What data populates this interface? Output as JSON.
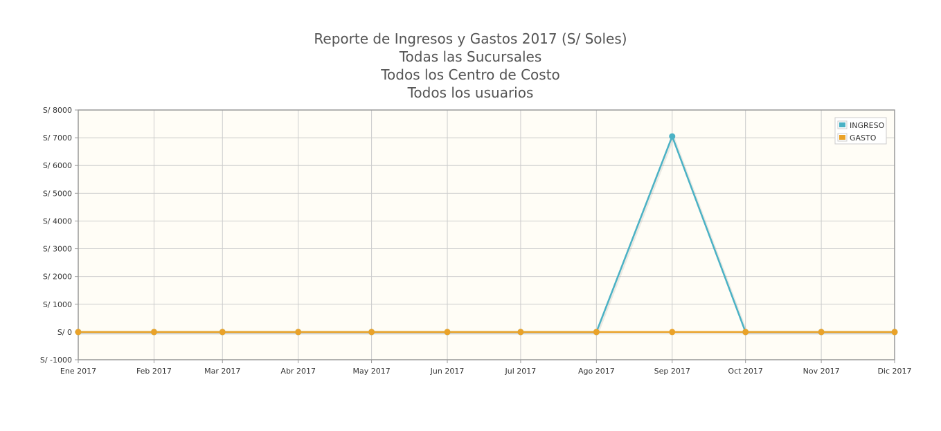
{
  "chart_data": {
    "type": "line",
    "title_lines": [
      "Reporte de Ingresos y Gastos 2017 (S/ Soles)",
      "Todas las Sucursales",
      "Todos los Centro de Costo",
      "Todos los usuarios"
    ],
    "categories": [
      "Ene 2017",
      "Feb 2017",
      "Mar 2017",
      "Abr 2017",
      "May 2017",
      "Jun 2017",
      "Jul 2017",
      "Ago 2017",
      "Sep 2017",
      "Oct 2017",
      "Nov 2017",
      "Dic 2017"
    ],
    "x_dates": [
      "2017-01-01",
      "2017-02-01",
      "2017-03-01",
      "2017-04-01",
      "2017-05-01",
      "2017-06-01",
      "2017-07-01",
      "2017-08-01",
      "2017-09-01",
      "2017-10-01",
      "2017-11-01",
      "2017-12-01"
    ],
    "y_ticks": [
      -1000,
      0,
      1000,
      2000,
      3000,
      4000,
      5000,
      6000,
      7000,
      8000
    ],
    "y_tick_prefix": "S/ ",
    "ylim": [
      -1000,
      8000
    ],
    "grid": true,
    "legend_position": "top-right",
    "series": [
      {
        "name": "INGRESO",
        "color": "#4bb2c5",
        "values": [
          0,
          0,
          0,
          0,
          0,
          0,
          0,
          0,
          7050,
          0,
          0,
          0
        ]
      },
      {
        "name": "GASTO",
        "color": "#eaa228",
        "values": [
          0,
          0,
          0,
          0,
          0,
          0,
          0,
          0,
          0,
          0,
          0,
          0
        ]
      }
    ],
    "plot_background": "#fffdf6",
    "grid_color": "#cccccc",
    "border_color": "#999999"
  }
}
